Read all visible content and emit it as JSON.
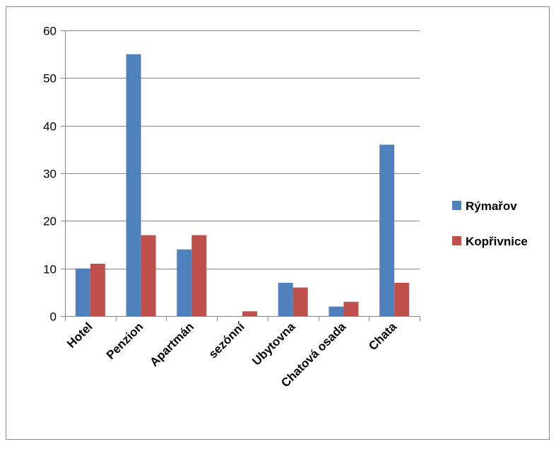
{
  "chart_data": {
    "type": "bar",
    "categories": [
      "Hotel",
      "Penzion",
      "Apartmán",
      "sezónní",
      "Ubytovna",
      "Chatová osada",
      "Chata"
    ],
    "series": [
      {
        "name": "Rýmařov",
        "values": [
          10,
          55,
          14,
          0,
          7,
          2,
          36
        ],
        "color": "#4F81BD"
      },
      {
        "name": "Kopřivnice",
        "values": [
          11,
          17,
          17,
          1,
          6,
          3,
          7
        ],
        "color": "#C0504D"
      }
    ],
    "ylim": [
      0,
      60
    ],
    "yticks": [
      0,
      10,
      20,
      30,
      40,
      50,
      60
    ],
    "grid": true,
    "legend_position": "right"
  }
}
